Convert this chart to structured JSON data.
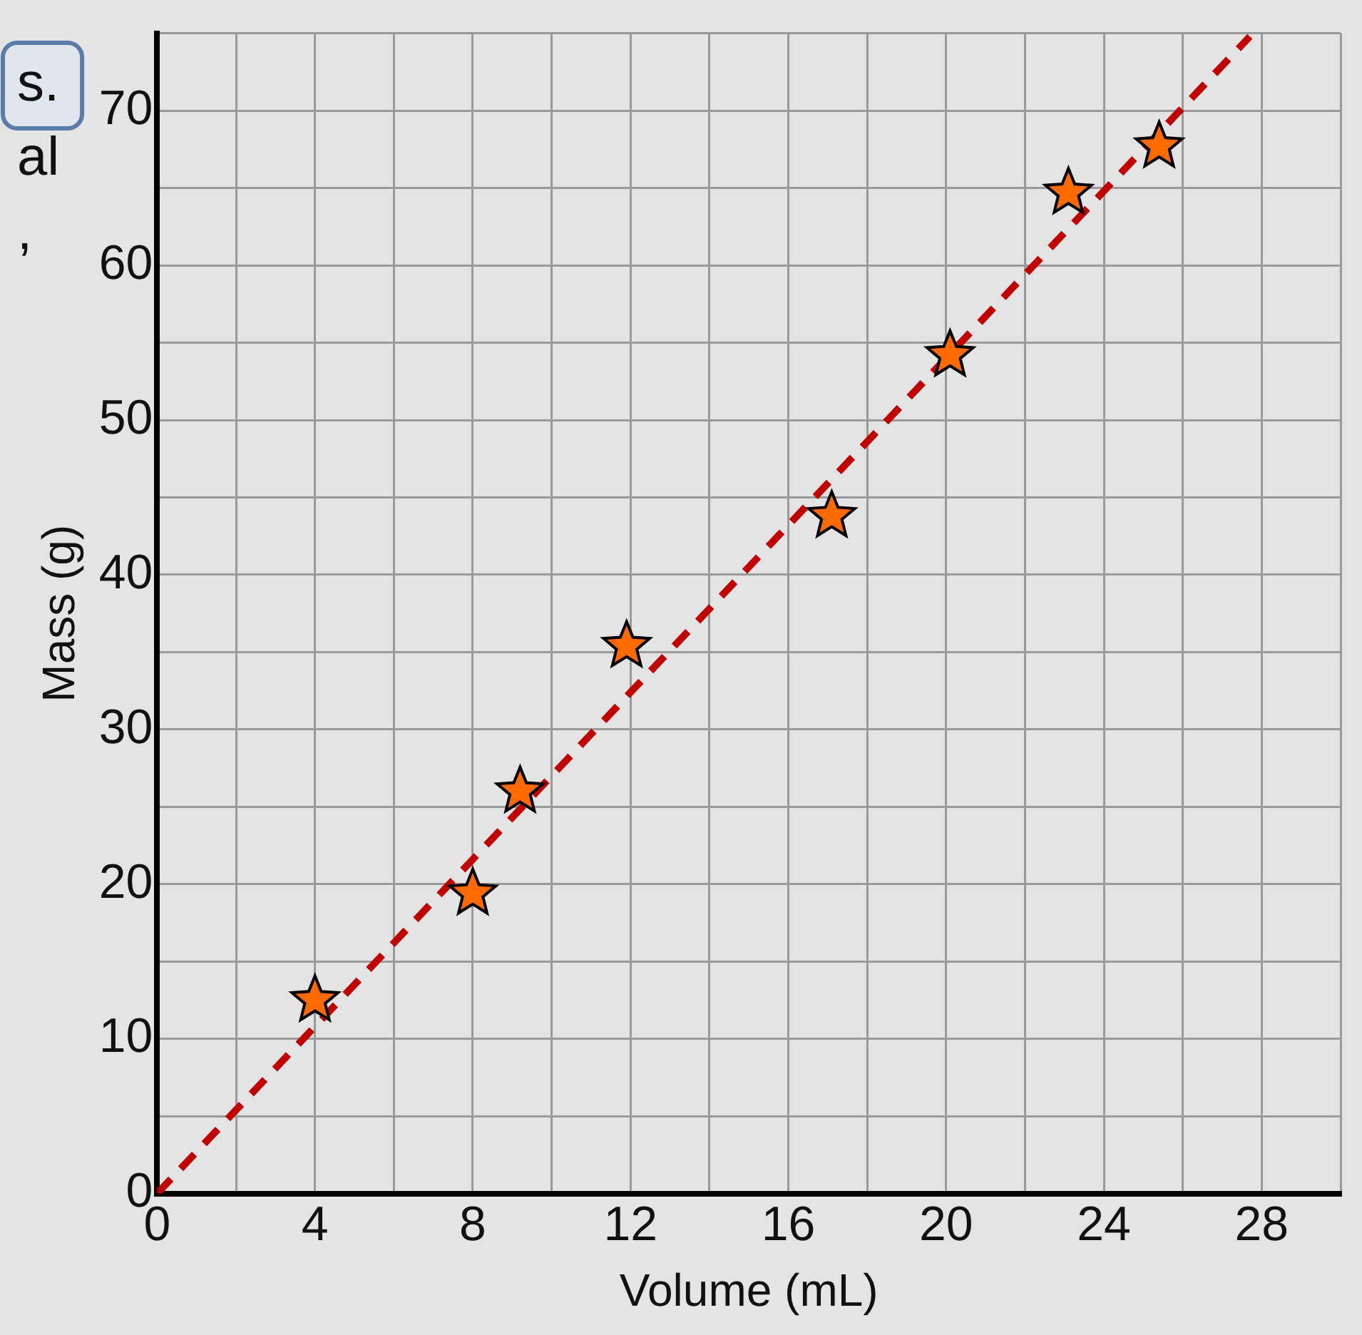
{
  "chart_data": {
    "type": "scatter",
    "xlabel": "Volume (mL)",
    "ylabel": "Mass (g)",
    "annotations": [
      "s.",
      "al",
      ","
    ],
    "xlim": [
      0,
      30
    ],
    "ylim": [
      0,
      75
    ],
    "xticks": [
      0,
      {
        "value": 2,
        "label": null
      },
      4,
      {
        "value": 6,
        "label": null
      },
      8,
      {
        "value": 10,
        "label": null
      },
      12,
      {
        "value": 14,
        "label": null
      },
      16,
      {
        "value": 18,
        "label": null
      },
      20,
      {
        "value": 22,
        "label": null
      },
      24,
      {
        "value": 26,
        "label": null
      },
      28,
      {
        "value": 30,
        "label": null
      }
    ],
    "yticks": [
      0,
      {
        "value": 5,
        "label": null
      },
      10,
      {
        "value": 15,
        "label": null
      },
      20,
      {
        "value": 25,
        "label": null
      },
      30,
      {
        "value": 35,
        "label": null
      },
      40,
      {
        "value": 45,
        "label": null
      },
      50,
      {
        "value": 55,
        "label": null
      },
      60,
      {
        "value": 65,
        "label": null
      },
      70,
      {
        "value": 75,
        "label": null
      }
    ],
    "grid": true,
    "legend": false,
    "series": [
      {
        "color": "#ff6a00",
        "marker": "star",
        "x": [
          4,
          8,
          9.2,
          11.9,
          17.1,
          20.1,
          23.1,
          25.4
        ],
        "values": [
          12.5,
          19.4,
          26,
          35.4,
          43.8,
          54.2,
          64.7,
          67.7
        ]
      },
      {
        "type": "line",
        "color": "#c00000",
        "line_style": "dashed",
        "marker": "none",
        "x": [
          0,
          27.7
        ],
        "values": [
          0,
          74.8
        ]
      }
    ]
  }
}
